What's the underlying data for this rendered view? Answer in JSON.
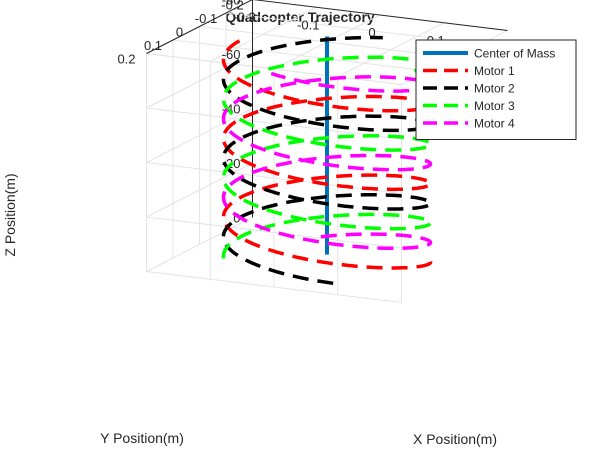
{
  "chart_data": {
    "type": "line",
    "title": "Quadcopter Trajectory",
    "xlabel": "X Position(m)",
    "ylabel": "Y Position(m)",
    "zlabel": "Z Position(m)",
    "xlim": [
      -0.2,
      0.2
    ],
    "ylim": [
      -0.2,
      0.2
    ],
    "zlim": [
      -80,
      0
    ],
    "x_ticks": [
      "-0.2",
      "-0.1",
      "0",
      "0.1",
      "0.2"
    ],
    "y_ticks": [
      "-0.2",
      "-0.1",
      "0",
      "0.1",
      "0.2"
    ],
    "z_ticks": [
      "0",
      "-20",
      "-40",
      "-60",
      "-80"
    ],
    "grid": true,
    "legend_position": "top-right",
    "helix": {
      "radius": 0.15,
      "z_start": 0,
      "z_end": -75,
      "turns": 2.6
    },
    "series": [
      {
        "name": "Center of Mass",
        "color": "#0072bd",
        "style": "solid",
        "phase_deg": null,
        "x": [
          0,
          0
        ],
        "y": [
          0,
          0
        ],
        "z": [
          -2,
          -82
        ]
      },
      {
        "name": "Motor 1",
        "color": "#ff0000",
        "style": "dashed",
        "phase_deg": 0
      },
      {
        "name": "Motor 2",
        "color": "#000000",
        "style": "dashed",
        "phase_deg": 90
      },
      {
        "name": "Motor 3",
        "color": "#00ff00",
        "style": "dashed",
        "phase_deg": 180
      },
      {
        "name": "Motor 4",
        "color": "#ff00ff",
        "style": "dashed",
        "phase_deg": 270
      }
    ]
  }
}
